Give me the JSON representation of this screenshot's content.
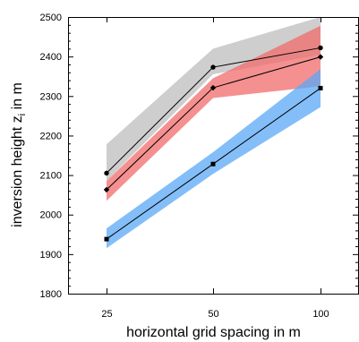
{
  "chart_data": {
    "type": "line",
    "title": "",
    "xlabel": "horizontal grid spacing in m",
    "ylabel": "inversion height z",
    "ylabel_subscript": "i",
    "ylabel_suffix": " in m",
    "categories": [
      "25",
      "50",
      "100"
    ],
    "ylim": [
      1800,
      2500
    ],
    "yticks": [
      1800,
      1900,
      2000,
      2100,
      2200,
      2300,
      2400,
      2500
    ],
    "grid": false,
    "legend": "none",
    "series": [
      {
        "marker": "circle",
        "values": [
          2105,
          2373,
          2422
        ],
        "band_low": [
          2085,
          2355,
          2405
        ],
        "band_high": [
          2178,
          2420,
          2500
        ],
        "band_color": "#bdbdbd"
      },
      {
        "marker": "diamond",
        "values": [
          2063,
          2321,
          2399
        ],
        "band_low": [
          2035,
          2295,
          2325
        ],
        "band_high": [
          2085,
          2345,
          2478
        ],
        "band_color": "#f26b6b"
      },
      {
        "marker": "square",
        "values": [
          1938,
          2128,
          2320
        ],
        "band_low": [
          1915,
          2103,
          2272
        ],
        "band_high": [
          1965,
          2158,
          2368
        ],
        "band_color": "#5aa8f5"
      }
    ]
  }
}
